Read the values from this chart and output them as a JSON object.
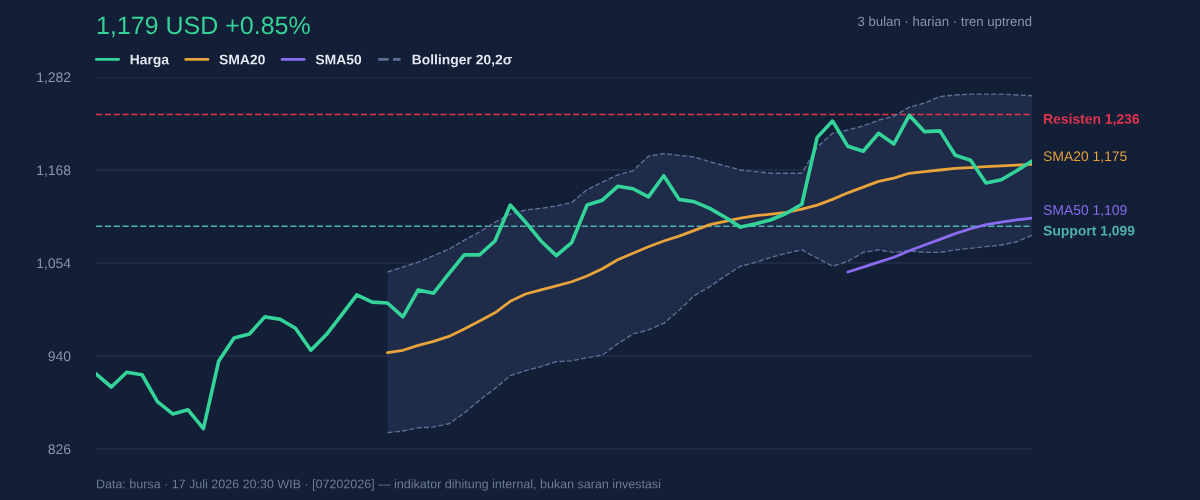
{
  "chart_data": {
    "type": "line",
    "title": "1,179 USD +0.85%",
    "subtitle": "3 bulan · harian · tren uptrend",
    "categories": [
      null,
      null,
      null,
      null,
      null,
      null,
      null,
      null,
      null,
      null,
      null,
      null,
      null,
      null,
      null,
      null,
      null,
      null,
      null,
      null,
      null,
      null,
      null,
      null,
      null,
      null,
      null,
      null,
      null,
      null,
      null,
      null,
      null,
      null,
      null,
      null,
      null,
      null,
      null,
      null,
      null,
      null,
      null,
      null,
      null,
      null,
      null,
      null,
      null,
      null,
      null,
      null,
      null,
      null,
      null,
      null,
      null,
      null,
      null,
      null,
      null,
      null
    ],
    "series": [
      {
        "name": "Harga",
        "color": "#34d399",
        "values": [
          918,
          902,
          920,
          917,
          884,
          869,
          874,
          851,
          934,
          962,
          967,
          988,
          985,
          974,
          947,
          966,
          990,
          1015,
          1006,
          1005,
          988,
          1021,
          1017,
          1041,
          1064,
          1064,
          1081,
          1125,
          1104,
          1081,
          1063,
          1079,
          1125,
          1131,
          1148,
          1145,
          1135,
          1161,
          1132,
          1129,
          1121,
          1110,
          1098,
          1102,
          1107,
          1115,
          1126,
          1208,
          1228,
          1197,
          1191,
          1213,
          1200,
          1235,
          1215,
          1216,
          1186,
          1180,
          1152,
          1156,
          1167,
          1179
        ]
      },
      {
        "name": "SMA20",
        "color": "#e8a33a",
        "values": [
          null,
          null,
          null,
          null,
          null,
          null,
          null,
          null,
          null,
          null,
          null,
          null,
          null,
          null,
          null,
          null,
          null,
          null,
          null,
          944,
          947,
          953,
          958,
          964,
          973,
          983,
          993,
          1007,
          1016,
          1021,
          1026,
          1031,
          1038,
          1047,
          1058,
          1066,
          1074,
          1081,
          1087,
          1094,
          1101,
          1105,
          1109,
          1112,
          1114,
          1116,
          1120,
          1125,
          1132,
          1140,
          1147,
          1154,
          1158,
          1164,
          1166,
          1168,
          1170,
          1171,
          1172,
          1173,
          1174,
          1175
        ]
      },
      {
        "name": "SMA50",
        "color": "#8b6cf0",
        "values": [
          null,
          null,
          null,
          null,
          null,
          null,
          null,
          null,
          null,
          null,
          null,
          null,
          null,
          null,
          null,
          null,
          null,
          null,
          null,
          null,
          null,
          null,
          null,
          null,
          null,
          null,
          null,
          null,
          null,
          null,
          null,
          null,
          null,
          null,
          null,
          null,
          null,
          null,
          null,
          null,
          null,
          null,
          null,
          null,
          null,
          null,
          null,
          null,
          null,
          1043,
          1049,
          1055,
          1061,
          1069,
          1076,
          1083,
          1090,
          1096,
          1101,
          1104,
          1107,
          1109
        ]
      },
      {
        "name": "Bollinger 20,2σ",
        "color": "#5d6f92",
        "line_style": "dashed",
        "values": [
          null,
          null,
          null,
          null,
          null,
          null,
          null,
          null,
          null,
          null,
          null,
          null,
          null,
          null,
          null,
          null,
          null,
          null,
          null,
          1043,
          1049,
          1055,
          1063,
          1071,
          1082,
          1092,
          1104,
          1114,
          1119,
          1121,
          1124,
          1128,
          1144,
          1153,
          1162,
          1167,
          1185,
          1188,
          1186,
          1184,
          1178,
          1173,
          1168,
          1166,
          1164,
          1164,
          1164,
          1196,
          1213,
          1217,
          1222,
          1229,
          1234,
          1245,
          1250,
          1258,
          1260,
          1261,
          1261,
          1261,
          1260,
          1259
        ],
        "upper": [
          null,
          null,
          null,
          null,
          null,
          null,
          null,
          null,
          null,
          null,
          null,
          null,
          null,
          null,
          null,
          null,
          null,
          null,
          null,
          1043,
          1049,
          1055,
          1063,
          1071,
          1082,
          1092,
          1104,
          1114,
          1119,
          1121,
          1124,
          1128,
          1144,
          1153,
          1162,
          1167,
          1185,
          1188,
          1186,
          1184,
          1178,
          1173,
          1168,
          1166,
          1164,
          1164,
          1164,
          1196,
          1213,
          1217,
          1222,
          1229,
          1234,
          1245,
          1250,
          1258,
          1260,
          1261,
          1261,
          1261,
          1260,
          1259
        ],
        "lower": [
          null,
          null,
          null,
          null,
          null,
          null,
          null,
          null,
          null,
          null,
          null,
          null,
          null,
          null,
          null,
          null,
          null,
          null,
          null,
          846,
          848,
          852,
          853,
          857,
          870,
          886,
          900,
          916,
          922,
          927,
          933,
          934,
          938,
          941,
          955,
          967,
          972,
          980,
          996,
          1014,
          1025,
          1038,
          1050,
          1055,
          1061,
          1066,
          1070,
          1060,
          1050,
          1056,
          1067,
          1070,
          1067,
          1069,
          1067,
          1067,
          1070,
          1072,
          1074,
          1076,
          1080,
          1088
        ]
      },
      {
        "color": "#5d6f92",
        "line_style": "dashed",
        "values": [
          null,
          null,
          null,
          null,
          null,
          null,
          null,
          null,
          null,
          null,
          null,
          null,
          null,
          null,
          null,
          null,
          null,
          null,
          null,
          846,
          848,
          852,
          853,
          857,
          870,
          886,
          900,
          916,
          922,
          927,
          933,
          934,
          938,
          941,
          955,
          967,
          972,
          980,
          996,
          1014,
          1025,
          1038,
          1050,
          1055,
          1061,
          1066,
          1070,
          1060,
          1050,
          1056,
          1067,
          1070,
          1067,
          1069,
          1067,
          1067,
          1070,
          1072,
          1074,
          1076,
          1080,
          1088
        ]
      }
    ],
    "ylim": [
      826,
      1282
    ],
    "yticks": [
      826,
      940,
      {
        "value": 1054,
        "label": "1,054"
      },
      {
        "value": 1168,
        "label": "1,168"
      },
      {
        "value": 1282,
        "label": "1,282"
      }
    ],
    "grid": "y",
    "legend": "top left",
    "tick_labels": "y",
    "ref_lines": [
      {
        "axis": "y",
        "value": 1236,
        "label": "Resisten 1,236",
        "color": "#e0344f",
        "line_style": "dashed"
      },
      {
        "axis": "y",
        "value": 1099,
        "label": "Support 1,099",
        "color": "#4fb3ad",
        "line_style": "dashed"
      }
    ],
    "annotations": [
      "SMA20 1,175",
      "SMA50 1,109",
      "Data: bursa · 17 Juli 2026 20:30 WIB · [07202026] — indikator dihitung internal, bukan saran investasi"
    ]
  }
}
